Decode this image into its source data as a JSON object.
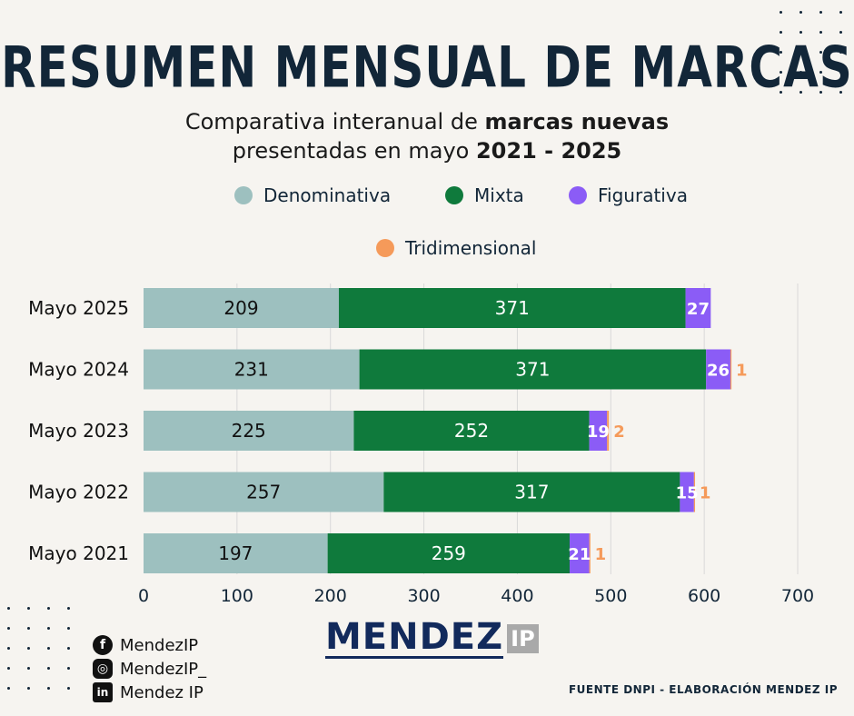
{
  "title": "RESUMEN MENSUAL DE MARCAS",
  "subtitle": {
    "line1_plain": "Comparativa interanual de ",
    "line1_bold": "marcas nuevas",
    "line2_plain": "presentadas en mayo ",
    "line2_bold": "2021 - 2025"
  },
  "colors": {
    "Denominativa": "#9dc0bf",
    "Mixta": "#0f7a3c",
    "Figurativa": "#8b5cf6",
    "Tridimensional": "#f59a5a",
    "title": "#122638"
  },
  "chart_data": {
    "type": "bar",
    "orientation": "horizontal",
    "stacked": true,
    "categories": [
      "Mayo 2025",
      "Mayo 2024",
      "Mayo 2023",
      "Mayo 2022",
      "Mayo 2021"
    ],
    "series": [
      {
        "name": "Denominativa",
        "values": [
          209,
          231,
          225,
          257,
          197
        ]
      },
      {
        "name": "Mixta",
        "values": [
          371,
          371,
          252,
          317,
          259
        ]
      },
      {
        "name": "Figurativa",
        "values": [
          27,
          26,
          19,
          15,
          21
        ]
      },
      {
        "name": "Tridimensional",
        "values": [
          null,
          1,
          2,
          1,
          1
        ]
      }
    ],
    "xticks": [
      0,
      100,
      200,
      300,
      400,
      500,
      600,
      700
    ],
    "xlim": [
      0,
      700
    ],
    "grid": "vertical",
    "legend": "top"
  },
  "social": [
    {
      "icon": "facebook-icon",
      "glyph": "f",
      "label": "MendezIP"
    },
    {
      "icon": "instagram-icon",
      "glyph": "◎",
      "label": "MendezIP_"
    },
    {
      "icon": "linkedin-icon",
      "glyph": "in",
      "label": "Mendez IP"
    }
  ],
  "logo": {
    "main": "MENDEZ",
    "suffix": "IP"
  },
  "source": "FUENTE DNPI - ELABORACIÓN MENDEZ IP"
}
